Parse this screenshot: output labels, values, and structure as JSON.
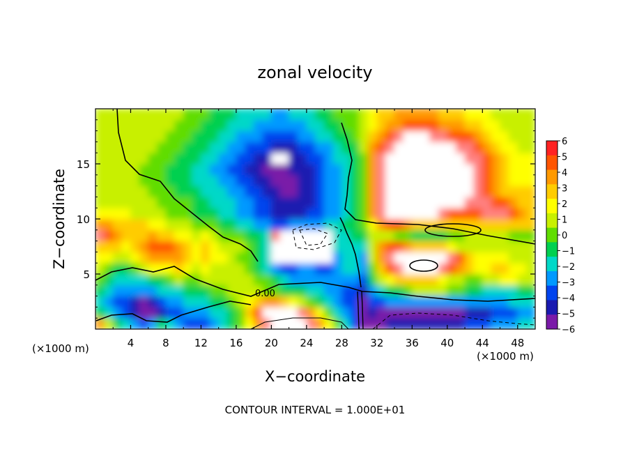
{
  "chart_data": {
    "type": "heatmap",
    "title": "zonal velocity",
    "xlabel": "X−coordinate",
    "ylabel": "Z−coordinate",
    "x_unit_label_left": "(×1000 m)",
    "x_unit_label_right": "(×1000 m)",
    "xlim": [
      0,
      50
    ],
    "ylim": [
      0,
      20
    ],
    "x_ticks": [
      4,
      8,
      12,
      16,
      20,
      24,
      28,
      32,
      36,
      40,
      44,
      48
    ],
    "y_ticks": [
      5,
      10,
      15
    ],
    "colorbar": {
      "ticks": [
        "6",
        "5",
        "4",
        "3",
        "2",
        "1",
        "0",
        "−1",
        "−2",
        "−3",
        "−4",
        "−5",
        "−6"
      ],
      "colors": [
        "#ff2222",
        "#ff5500",
        "#ff9900",
        "#ffcc00",
        "#ffff00",
        "#c8f000",
        "#60dd00",
        "#00d050",
        "#00d8c8",
        "#0099ff",
        "#0044ee",
        "#1a1ab0",
        "#7a1aa8"
      ]
    },
    "contour_label": "0.00",
    "footnote": "CONTOUR INTERVAL = 1.000E+01",
    "value_grid_cols": 50,
    "value_grid_rows": 20,
    "value_grid": [
      [
        4,
        1,
        -1,
        -2,
        -3,
        -4,
        -3,
        -1,
        -2,
        -3,
        -4,
        -4,
        -4,
        -3,
        -2,
        -1,
        0,
        2,
        4,
        6,
        8,
        8,
        8,
        7,
        6,
        4,
        2,
        0,
        -2,
        -4,
        -7,
        -6,
        -6,
        -5,
        -5,
        -5,
        -5,
        -5,
        -5,
        -5,
        -5,
        -5,
        -4,
        -4,
        -4,
        -3,
        -3,
        -3,
        -2,
        -2
      ],
      [
        -1,
        -2,
        -3,
        -4,
        -5,
        -6,
        -6,
        -5,
        -4,
        -4,
        -3,
        -3,
        -3,
        -2,
        -2,
        -1,
        0,
        3,
        5,
        7,
        9,
        9,
        8,
        6,
        4,
        2,
        0,
        -2,
        -3,
        -4,
        -7,
        -5,
        -6,
        -6,
        -6,
        -6,
        -6,
        -6,
        -6,
        -6,
        -6,
        -6,
        -5,
        -5,
        -5,
        -4,
        -4,
        -4,
        -3,
        -3
      ],
      [
        -2,
        -3,
        -4,
        -4,
        -5,
        -6,
        -5,
        -4,
        -3,
        -3,
        -2,
        -2,
        -2,
        -1,
        -1,
        0,
        1,
        2,
        3,
        4,
        4,
        3,
        2,
        1,
        0,
        -1,
        -2,
        -3,
        -4,
        -4,
        -6,
        -4,
        -4,
        -3,
        -3,
        -3,
        -3,
        -3,
        -3,
        -3,
        -3,
        -3,
        -3,
        -3,
        -3,
        -3,
        -3,
        -2,
        -2,
        -2
      ],
      [
        -1,
        -2,
        -3,
        -3,
        -3,
        -3,
        -3,
        -2,
        -2,
        -2,
        -1,
        -1,
        -1,
        0,
        0,
        1,
        1,
        1,
        1,
        0,
        0,
        -1,
        -1,
        -1,
        -2,
        -2,
        -3,
        -3,
        -4,
        -4,
        -5,
        -3,
        -2,
        -1,
        -1,
        0,
        1,
        1,
        1,
        1,
        0,
        0,
        -1,
        -1,
        -2,
        -2,
        -2,
        -2,
        -1,
        -1
      ],
      [
        0,
        -1,
        -2,
        -2,
        -2,
        -2,
        -1,
        -1,
        0,
        1,
        0,
        0,
        1,
        1,
        1,
        1,
        1,
        1,
        0,
        0,
        -1,
        -2,
        -3,
        -3,
        -3,
        -3,
        -3,
        -3,
        -3,
        -3,
        -4,
        -1,
        1,
        2,
        3,
        3,
        3,
        3,
        3,
        2,
        1,
        1,
        0,
        0,
        1,
        1,
        2,
        2,
        1,
        1
      ],
      [
        1,
        0,
        -1,
        -1,
        0,
        1,
        2,
        2,
        2,
        3,
        2,
        1,
        2,
        1,
        1,
        1,
        1,
        0,
        -1,
        -2,
        -3,
        -4,
        -4,
        -3,
        -3,
        -4,
        -4,
        -3,
        -2,
        -2,
        -3,
        0,
        3,
        5,
        6,
        7,
        7,
        7,
        7,
        6,
        5,
        4,
        3,
        2,
        2,
        3,
        3,
        2,
        2,
        1
      ],
      [
        2,
        2,
        1,
        1,
        2,
        3,
        4,
        4,
        4,
        4,
        3,
        2,
        3,
        2,
        2,
        1,
        0,
        0,
        -1,
        -2,
        7,
        8,
        8,
        8,
        8,
        8,
        7,
        -3,
        -2,
        -2,
        -3,
        1,
        4,
        6,
        7,
        7,
        7,
        7,
        7,
        7,
        6,
        5,
        3,
        2,
        2,
        2,
        2,
        1,
        1,
        1
      ],
      [
        3,
        3,
        3,
        2,
        3,
        4,
        5,
        5,
        5,
        4,
        3,
        2,
        3,
        2,
        1,
        1,
        1,
        0,
        -1,
        -2,
        7,
        8,
        8,
        8,
        8,
        8,
        8,
        -2,
        -2,
        -2,
        -2,
        1,
        4,
        5,
        5,
        4,
        3,
        3,
        3,
        3,
        2,
        1,
        1,
        1,
        1,
        1,
        1,
        1,
        1,
        1
      ],
      [
        6,
        5,
        4,
        3,
        3,
        3,
        4,
        3,
        3,
        2,
        2,
        1,
        2,
        1,
        0,
        0,
        0,
        -1,
        -1,
        -2,
        6,
        7,
        8,
        8,
        8,
        8,
        7,
        -2,
        -2,
        -1,
        -1,
        1,
        1,
        1,
        0,
        0,
        -1,
        -1,
        -1,
        -1,
        0,
        0,
        1,
        1,
        1,
        1,
        1,
        0,
        0,
        0
      ],
      [
        4,
        4,
        3,
        3,
        3,
        3,
        2,
        2,
        1,
        1,
        1,
        0,
        0,
        0,
        -1,
        -1,
        -2,
        -2,
        -3,
        -3,
        -4,
        -4,
        -3,
        -3,
        -3,
        -3,
        -2,
        -2,
        -1,
        -1,
        0,
        2,
        4,
        5,
        5,
        4,
        3,
        3,
        3,
        3,
        3,
        3,
        3,
        3,
        3,
        3,
        3,
        3,
        3,
        3
      ],
      [
        2,
        2,
        2,
        2,
        1,
        1,
        1,
        1,
        0,
        0,
        0,
        -1,
        -1,
        -1,
        -2,
        -2,
        -3,
        -3,
        -4,
        -4,
        -5,
        -5,
        -5,
        -5,
        -4,
        -4,
        -3,
        -3,
        -2,
        -1,
        0,
        4,
        6,
        7,
        7,
        7,
        7,
        7,
        7,
        6,
        5,
        5,
        5,
        5,
        6,
        6,
        6,
        5,
        4,
        3
      ],
      [
        1,
        1,
        1,
        1,
        1,
        1,
        1,
        0,
        0,
        0,
        0,
        -1,
        -1,
        -2,
        -2,
        -2,
        -3,
        -3,
        -4,
        -4,
        -5,
        -5,
        -5,
        -5,
        -5,
        -4,
        -3,
        -3,
        -2,
        -1,
        0,
        4,
        6,
        7,
        7,
        7,
        7,
        7,
        7,
        7,
        7,
        7,
        6,
        6,
        6,
        5,
        5,
        4,
        3,
        3
      ],
      [
        1,
        1,
        1,
        1,
        1,
        1,
        0,
        0,
        0,
        -1,
        -1,
        -1,
        -2,
        -2,
        -2,
        -3,
        -3,
        -4,
        -4,
        -5,
        -5,
        -6,
        -6,
        -5,
        -5,
        -4,
        -3,
        -3,
        -2,
        -1,
        0,
        4,
        6,
        7,
        7,
        8,
        8,
        8,
        8,
        8,
        8,
        7,
        7,
        6,
        5,
        4,
        3,
        3,
        3,
        3
      ],
      [
        1,
        1,
        1,
        1,
        1,
        0,
        0,
        0,
        -1,
        -1,
        -1,
        -2,
        -2,
        -2,
        -3,
        -3,
        -4,
        -4,
        -5,
        -5,
        -6,
        -6,
        -6,
        -5,
        -5,
        -4,
        -3,
        -3,
        -2,
        -1,
        0,
        4,
        6,
        7,
        7,
        8,
        8,
        8,
        8,
        8,
        8,
        7,
        7,
        6,
        5,
        4,
        3,
        2,
        2,
        2
      ],
      [
        1,
        1,
        1,
        1,
        1,
        0,
        0,
        0,
        -1,
        -1,
        -1,
        -2,
        -2,
        -3,
        -3,
        -4,
        -4,
        -5,
        -5,
        -6,
        -6,
        -6,
        -5,
        -5,
        -5,
        -4,
        -3,
        -3,
        -2,
        -1,
        0,
        4,
        6,
        7,
        7,
        8,
        8,
        8,
        8,
        8,
        8,
        7,
        7,
        6,
        5,
        4,
        3,
        2,
        2,
        2
      ],
      [
        1,
        1,
        1,
        1,
        1,
        1,
        0,
        0,
        0,
        -1,
        -1,
        -1,
        -2,
        -2,
        -3,
        -3,
        -4,
        -4,
        -5,
        -5,
        8,
        8,
        -5,
        -5,
        -4,
        -4,
        -3,
        -2,
        -2,
        -1,
        0,
        4,
        6,
        7,
        7,
        8,
        8,
        8,
        8,
        8,
        8,
        7,
        6,
        6,
        5,
        4,
        3,
        2,
        2,
        2
      ],
      [
        1,
        1,
        1,
        1,
        1,
        1,
        1,
        0,
        0,
        0,
        -1,
        -1,
        -1,
        -2,
        -2,
        -3,
        -3,
        -4,
        -4,
        -4,
        -5,
        -5,
        -5,
        -4,
        -4,
        -3,
        -3,
        -2,
        -1,
        -1,
        1,
        4,
        5,
        6,
        7,
        8,
        8,
        8,
        8,
        8,
        7,
        6,
        6,
        5,
        4,
        3,
        2,
        2,
        1,
        1
      ],
      [
        1,
        1,
        1,
        1,
        1,
        1,
        1,
        1,
        0,
        0,
        0,
        -1,
        -1,
        -1,
        -2,
        -2,
        -3,
        -3,
        -3,
        -4,
        -4,
        -4,
        -4,
        -3,
        -3,
        -2,
        -2,
        -1,
        -1,
        0,
        1,
        3,
        4,
        5,
        6,
        7,
        7,
        7,
        6,
        6,
        5,
        5,
        5,
        4,
        3,
        2,
        2,
        1,
        1,
        1
      ],
      [
        1,
        1,
        1,
        1,
        1,
        1,
        1,
        1,
        1,
        0,
        0,
        0,
        -1,
        -1,
        -1,
        -2,
        -2,
        -2,
        -3,
        -3,
        -3,
        -3,
        -3,
        -3,
        -2,
        -2,
        -1,
        -1,
        0,
        0,
        1,
        2,
        3,
        4,
        4,
        5,
        5,
        5,
        5,
        4,
        4,
        4,
        3,
        3,
        2,
        2,
        1,
        1,
        1,
        1
      ],
      [
        1,
        1,
        1,
        1,
        1,
        1,
        1,
        1,
        1,
        1,
        0,
        0,
        0,
        -1,
        -1,
        -1,
        -2,
        -2,
        -2,
        -2,
        -3,
        -3,
        -2,
        -2,
        -2,
        -1,
        -1,
        0,
        0,
        0,
        1,
        2,
        3,
        3,
        4,
        4,
        4,
        4,
        4,
        3,
        3,
        3,
        2,
        2,
        2,
        1,
        1,
        1,
        1,
        1
      ]
    ]
  }
}
